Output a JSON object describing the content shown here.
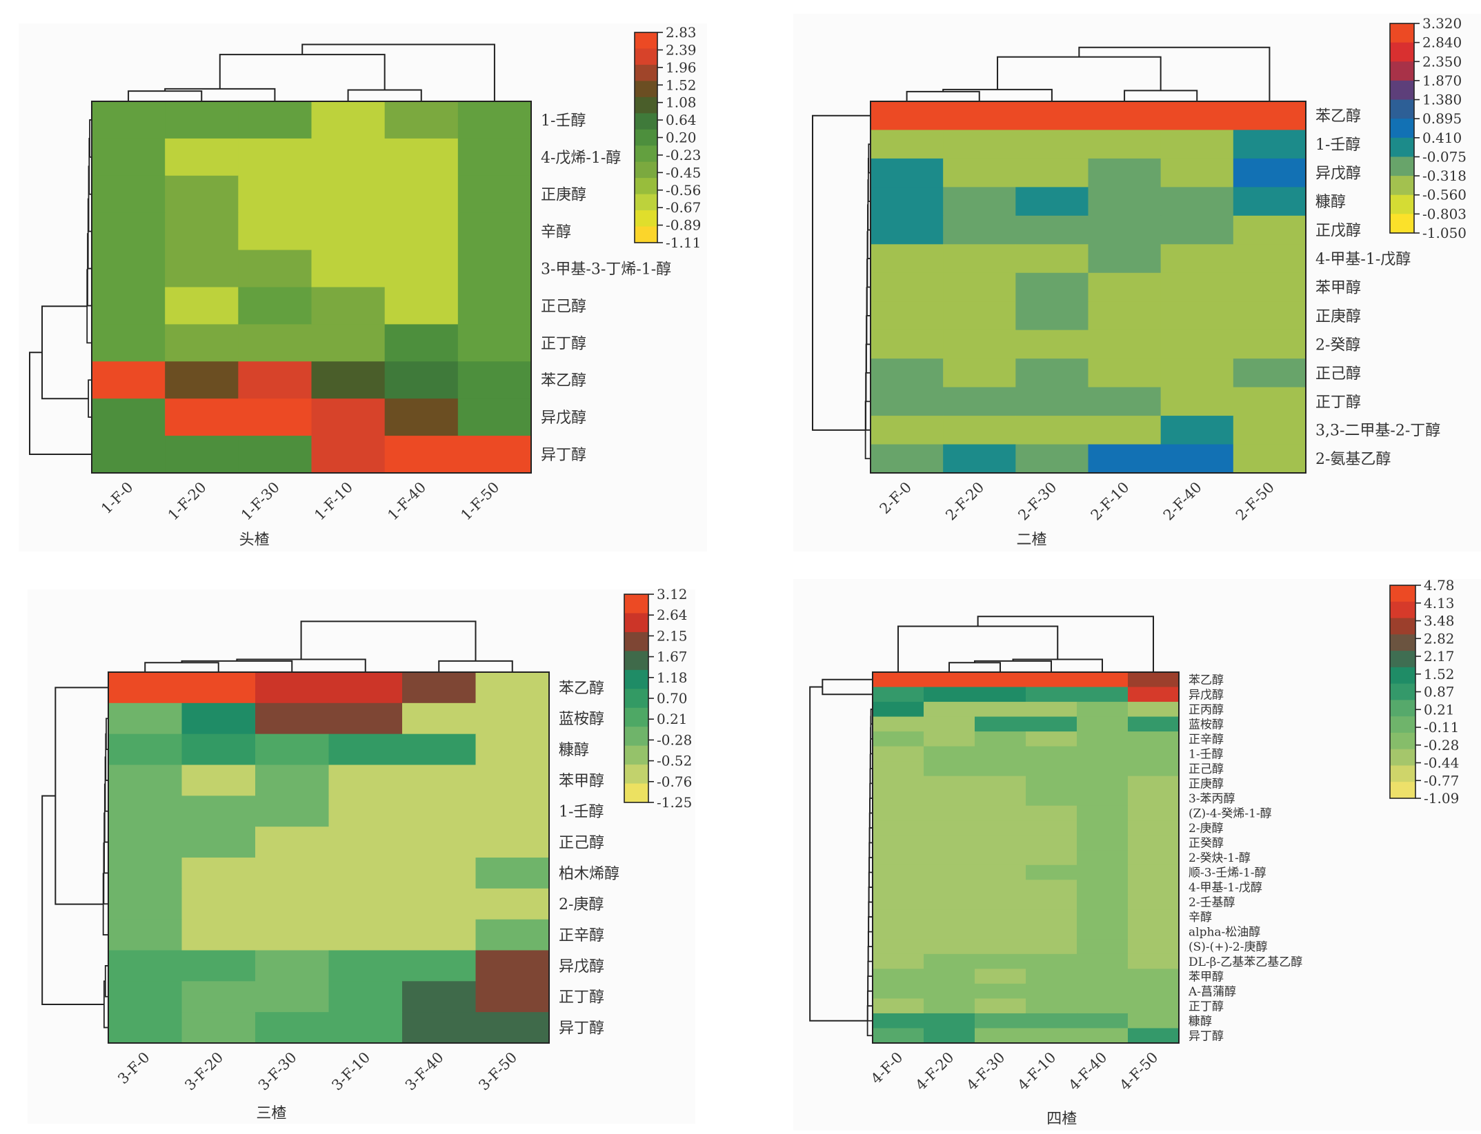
{
  "chart_data": [
    {
      "type": "heatmap",
      "title": "头楂",
      "xlabel": "头楂",
      "columns": [
        "1-F-0",
        "1-F-20",
        "1-F-30",
        "1-F-10",
        "1-F-40",
        "1-F-50"
      ],
      "rows": [
        "1-壬醇",
        "4-戊烯-1-醇",
        "正庚醇",
        "辛醇",
        "3-甲基-3-丁烯-1-醇",
        "正己醇",
        "正丁醇",
        "苯乙醇",
        "异戊醇",
        "异丁醇"
      ],
      "colorbar": {
        "ticks": [
          "2.83",
          "2.39",
          "1.96",
          "1.52",
          "1.08",
          "0.64",
          "0.20",
          "-0.23",
          "-0.45",
          "-0.56",
          "-0.67",
          "-0.89",
          "-1.11"
        ],
        "colors": [
          "#ec4a24",
          "#d7432a",
          "#a0452a",
          "#6b4e22",
          "#4a5e2a",
          "#3f7a3a",
          "#4d8f3d",
          "#63a03f",
          "#7ba93f",
          "#98bd3c",
          "#bdd23c",
          "#e0de2c",
          "#fbd52b"
        ]
      },
      "values": [
        [
          -0.4,
          -0.4,
          -0.4,
          -0.7,
          -0.55,
          -0.4
        ],
        [
          -0.4,
          -0.7,
          -0.7,
          -0.7,
          -0.7,
          -0.4
        ],
        [
          -0.4,
          -0.55,
          -0.7,
          -0.7,
          -0.7,
          -0.4
        ],
        [
          -0.4,
          -0.55,
          -0.7,
          -0.7,
          -0.7,
          -0.4
        ],
        [
          -0.4,
          -0.55,
          -0.55,
          -0.7,
          -0.7,
          -0.4
        ],
        [
          -0.4,
          -0.7,
          -0.3,
          -0.55,
          -0.7,
          -0.4
        ],
        [
          -0.4,
          -0.55,
          -0.55,
          -0.55,
          -0.1,
          -0.4
        ],
        [
          2.8,
          1.3,
          2.1,
          0.9,
          0.4,
          -0.1
        ],
        [
          -0.1,
          2.5,
          2.5,
          2.1,
          1.3,
          -0.1
        ],
        [
          -0.1,
          -0.1,
          -0.1,
          2.1,
          2.5,
          2.8
        ]
      ],
      "col_dendrogram": [
        [
          0,
          1,
          2
        ],
        [
          3,
          4
        ],
        [
          5
        ]
      ],
      "row_dendrogram": [
        [
          0,
          1,
          2,
          3,
          4,
          5,
          6
        ],
        [
          7,
          8
        ],
        [
          9
        ]
      ]
    },
    {
      "type": "heatmap",
      "title": "二楂",
      "xlabel": "二楂",
      "columns": [
        "2-F-0",
        "2-F-20",
        "2-F-30",
        "2-F-10",
        "2-F-40",
        "2-F-50"
      ],
      "rows": [
        "苯乙醇",
        "1-壬醇",
        "异戊醇",
        "糠醇",
        "正戊醇",
        "4-甲基-1-戊醇",
        "苯甲醇",
        "正庚醇",
        "2-癸醇",
        "正己醇",
        "正丁醇",
        "3,3-二甲基-2-丁醇",
        "2-氨基乙醇"
      ],
      "colorbar": {
        "ticks": [
          "3.320",
          "2.840",
          "2.350",
          "1.870",
          "1.380",
          "0.895",
          "0.410",
          "-0.075",
          "-0.318",
          "-0.560",
          "-0.803",
          "-1.050"
        ],
        "colors": [
          "#ec4a24",
          "#d93030",
          "#a83248",
          "#5d3f7a",
          "#2d5f96",
          "#1271b4",
          "#1c8b8a",
          "#68a46a",
          "#a3c14f",
          "#d5dc34",
          "#fbe12a"
        ]
      },
      "values": [
        [
          3.3,
          3.3,
          3.3,
          3.3,
          3.3,
          3.3
        ],
        [
          -0.45,
          -0.45,
          -0.45,
          -0.45,
          -0.45,
          0.1
        ],
        [
          0.1,
          -0.45,
          -0.45,
          -0.2,
          -0.45,
          0.6
        ],
        [
          0.1,
          -0.2,
          0.1,
          -0.2,
          -0.2,
          0.1
        ],
        [
          0.1,
          -0.2,
          -0.2,
          -0.2,
          -0.2,
          -0.45
        ],
        [
          -0.45,
          -0.45,
          -0.45,
          -0.2,
          -0.45,
          -0.45
        ],
        [
          -0.45,
          -0.45,
          -0.2,
          -0.45,
          -0.45,
          -0.45
        ],
        [
          -0.45,
          -0.45,
          -0.2,
          -0.45,
          -0.45,
          -0.45
        ],
        [
          -0.45,
          -0.45,
          -0.45,
          -0.45,
          -0.45,
          -0.45
        ],
        [
          -0.2,
          -0.45,
          -0.2,
          -0.45,
          -0.45,
          -0.2
        ],
        [
          -0.2,
          -0.2,
          -0.2,
          -0.2,
          -0.45,
          -0.45
        ],
        [
          -0.45,
          -0.45,
          -0.45,
          -0.45,
          0.1,
          -0.45
        ],
        [
          -0.2,
          0.1,
          -0.2,
          0.6,
          0.6,
          -0.45
        ]
      ],
      "col_dendrogram": [
        [
          0,
          1,
          2
        ],
        [
          3,
          4
        ],
        [
          5
        ]
      ],
      "row_dendrogram": [
        [
          0
        ],
        [
          1,
          2,
          3,
          4,
          5,
          6,
          7,
          8,
          9,
          10,
          11,
          12
        ]
      ]
    },
    {
      "type": "heatmap",
      "title": "三楂",
      "xlabel": "三楂",
      "columns": [
        "3-F-0",
        "3-F-20",
        "3-F-30",
        "3-F-10",
        "3-F-40",
        "3-F-50"
      ],
      "rows": [
        "苯乙醇",
        "蓝桉醇",
        "糠醇",
        "苯甲醇",
        "1-壬醇",
        "正己醇",
        "柏木烯醇",
        "2-庚醇",
        "正辛醇",
        "异戊醇",
        "正丁醇",
        "异丁醇"
      ],
      "colorbar": {
        "ticks": [
          "3.12",
          "2.64",
          "2.15",
          "1.67",
          "1.18",
          "0.70",
          "0.21",
          "-0.28",
          "-0.52",
          "-0.76",
          "-1.25"
        ],
        "colors": [
          "#ec4a24",
          "#cc3528",
          "#7e4634",
          "#3f6a4a",
          "#1f8c66",
          "#339a64",
          "#4ea865",
          "#6fb46a",
          "#95c26a",
          "#c2d26c",
          "#ece161"
        ]
      },
      "values": [
        [
          3.0,
          3.0,
          2.4,
          2.4,
          1.9,
          -0.9
        ],
        [
          -0.4,
          1.0,
          1.9,
          1.9,
          -0.9,
          -0.9
        ],
        [
          0.0,
          0.5,
          -0.1,
          0.5,
          0.5,
          -0.9
        ],
        [
          -0.4,
          -0.9,
          -0.4,
          -0.9,
          -0.9,
          -0.9
        ],
        [
          -0.4,
          -0.4,
          -0.4,
          -0.9,
          -0.9,
          -0.9
        ],
        [
          -0.4,
          -0.4,
          -0.9,
          -0.9,
          -0.9,
          -0.9
        ],
        [
          -0.4,
          -0.9,
          -0.9,
          -0.9,
          -0.9,
          -0.4
        ],
        [
          -0.4,
          -0.9,
          -0.9,
          -0.9,
          -0.9,
          -0.9
        ],
        [
          -0.4,
          -0.9,
          -0.9,
          -0.9,
          -0.9,
          -0.4
        ],
        [
          -0.1,
          -0.1,
          -0.4,
          -0.1,
          -0.1,
          1.9
        ],
        [
          -0.1,
          -0.4,
          -0.4,
          -0.1,
          1.4,
          1.9
        ],
        [
          -0.1,
          -0.4,
          -0.1,
          -0.1,
          1.4,
          1.4
        ]
      ],
      "col_dendrogram": [
        [
          0,
          1,
          2,
          3
        ],
        [
          4,
          5
        ]
      ],
      "row_dendrogram": [
        [
          0
        ],
        [
          1,
          2,
          3,
          4,
          5,
          6,
          7,
          8
        ],
        [
          9,
          10,
          11
        ]
      ]
    },
    {
      "type": "heatmap",
      "title": "四楂",
      "xlabel": "四楂",
      "columns": [
        "4-F-0",
        "4-F-20",
        "4-F-30",
        "4-F-10",
        "4-F-40",
        "4-F-50"
      ],
      "rows": [
        "苯乙醇",
        "异戊醇",
        "正丙醇",
        "蓝桉醇",
        "正辛醇",
        "1-壬醇",
        "正己醇",
        "正庚醇",
        "3-苯丙醇",
        "(Z)-4-癸烯-1-醇",
        "2-庚醇",
        "正癸醇",
        "2-癸炔-1-醇",
        "顺-3-壬烯-1-醇",
        "4-甲基-1-戊醇",
        "2-壬基醇",
        "辛醇",
        "alpha-松油醇",
        "(S)-(+)-2-庚醇",
        "DL-β-乙基苯乙基乙醇",
        "苯甲醇",
        "A-菖蒲醇",
        "正丁醇",
        "糠醇",
        "异丁醇"
      ],
      "colorbar": {
        "ticks": [
          "4.78",
          "4.13",
          "3.48",
          "2.82",
          "2.17",
          "1.52",
          "0.87",
          "0.21",
          "-0.11",
          "-0.28",
          "-0.44",
          "-0.77",
          "-1.09"
        ],
        "colors": [
          "#ec4a24",
          "#d63a2a",
          "#9c3f2c",
          "#6b5440",
          "#3f6e52",
          "#1f8c66",
          "#34996a",
          "#56a96b",
          "#6fb46b",
          "#86bd6a",
          "#a5c66b",
          "#cfd56a",
          "#ede06a"
        ]
      },
      "values": [
        [
          4.5,
          4.5,
          4.5,
          4.5,
          4.5,
          3.2
        ],
        [
          0.5,
          1.1,
          1.1,
          0.5,
          0.5,
          3.8
        ],
        [
          1.1,
          -0.5,
          -0.5,
          -0.5,
          -0.3,
          -0.5
        ],
        [
          -0.5,
          -0.5,
          0.5,
          0.5,
          -0.3,
          0.5
        ],
        [
          -0.3,
          -0.5,
          -0.3,
          -0.5,
          -0.3,
          -0.3
        ],
        [
          -0.5,
          -0.3,
          -0.3,
          -0.3,
          -0.3,
          -0.3
        ],
        [
          -0.5,
          -0.3,
          -0.3,
          -0.3,
          -0.3,
          -0.3
        ],
        [
          -0.5,
          -0.5,
          -0.5,
          -0.3,
          -0.3,
          -0.5
        ],
        [
          -0.5,
          -0.5,
          -0.5,
          -0.3,
          -0.3,
          -0.5
        ],
        [
          -0.5,
          -0.5,
          -0.5,
          -0.5,
          -0.3,
          -0.5
        ],
        [
          -0.5,
          -0.5,
          -0.5,
          -0.5,
          -0.3,
          -0.5
        ],
        [
          -0.5,
          -0.5,
          -0.5,
          -0.5,
          -0.3,
          -0.5
        ],
        [
          -0.5,
          -0.5,
          -0.5,
          -0.5,
          -0.3,
          -0.5
        ],
        [
          -0.5,
          -0.5,
          -0.5,
          -0.3,
          -0.3,
          -0.5
        ],
        [
          -0.5,
          -0.5,
          -0.5,
          -0.5,
          -0.3,
          -0.5
        ],
        [
          -0.5,
          -0.5,
          -0.5,
          -0.5,
          -0.3,
          -0.5
        ],
        [
          -0.5,
          -0.5,
          -0.5,
          -0.5,
          -0.3,
          -0.5
        ],
        [
          -0.5,
          -0.5,
          -0.5,
          -0.5,
          -0.3,
          -0.5
        ],
        [
          -0.5,
          -0.5,
          -0.5,
          -0.5,
          -0.3,
          -0.5
        ],
        [
          -0.5,
          -0.3,
          -0.3,
          -0.3,
          -0.3,
          -0.5
        ],
        [
          -0.3,
          -0.3,
          -0.5,
          -0.3,
          -0.3,
          -0.3
        ],
        [
          -0.3,
          -0.3,
          -0.3,
          -0.3,
          -0.3,
          -0.3
        ],
        [
          -0.5,
          -0.3,
          -0.5,
          -0.3,
          -0.3,
          -0.3
        ],
        [
          0.5,
          0.5,
          0.0,
          0.0,
          0.0,
          -0.3
        ],
        [
          0.0,
          0.5,
          -0.3,
          -0.3,
          -0.3,
          0.5
        ]
      ],
      "col_dendrogram": [
        [
          0
        ],
        [
          1,
          2,
          3,
          4
        ],
        [
          5
        ]
      ],
      "row_dendrogram": [
        [
          0
        ],
        [
          1
        ],
        [
          2,
          3,
          4,
          5,
          6,
          7,
          8,
          9,
          10,
          11,
          12,
          13,
          14,
          15,
          16,
          17,
          18,
          19,
          20,
          21,
          22,
          23,
          24
        ]
      ]
    }
  ]
}
